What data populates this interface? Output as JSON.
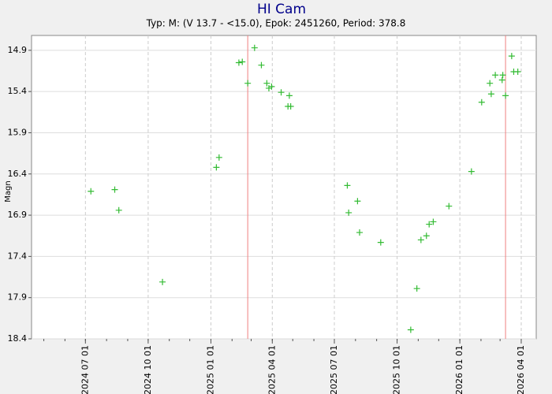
{
  "chart_data": {
    "type": "scatter",
    "title": "HI Cam",
    "subtitle": "Typ: M: (V 13.7 - <15.0), Epok: 2451260, Period: 378.8",
    "y_label": "Magn",
    "invert_y": true,
    "grid": true,
    "ylim": [
      14.72,
      18.4
    ],
    "yticks": [
      14.9,
      15.4,
      15.9,
      16.4,
      16.9,
      17.4,
      17.9,
      18.4
    ],
    "xlim": [
      "2024-04-13",
      "2026-04-23"
    ],
    "xticks": [
      {
        "value": "2024-07-01",
        "label": "2024 07 01"
      },
      {
        "value": "2024-10-01",
        "label": "2024 10 01"
      },
      {
        "value": "2025-01-01",
        "label": "2025 01 01"
      },
      {
        "value": "2025-04-01",
        "label": "2025 04 01"
      },
      {
        "value": "2025-07-01",
        "label": "2025 07 01"
      },
      {
        "value": "2025-10-01",
        "label": "2025 10 01"
      },
      {
        "value": "2026-01-01",
        "label": "2026 01 01"
      },
      {
        "value": "2026-04-01",
        "label": "2026 04 01"
      }
    ],
    "maxima": [
      "2025-02-24",
      "2026-03-09"
    ],
    "maxima_color": "#f08080",
    "series": [
      {
        "color": "#33bb33",
        "x": [
          "2024-07-09",
          "2024-08-13",
          "2024-08-19",
          "2024-10-22",
          "2025-01-09",
          "2025-01-13",
          "2025-02-11",
          "2025-02-16",
          "2025-02-24",
          "2025-03-06",
          "2025-03-16",
          "2025-03-24",
          "2025-03-27",
          "2025-03-31",
          "2025-04-14",
          "2025-04-24",
          "2025-04-28",
          "2025-04-26",
          "2025-07-20",
          "2025-07-22",
          "2025-08-04",
          "2025-08-07",
          "2025-09-07",
          "2025-10-21",
          "2025-10-30",
          "2025-11-05",
          "2025-11-13",
          "2025-11-17",
          "2025-11-23",
          "2025-12-16",
          "2026-01-18",
          "2026-02-02",
          "2026-02-14",
          "2026-02-16",
          "2026-02-22",
          "2026-03-04",
          "2026-03-05",
          "2026-03-09",
          "2026-03-18",
          "2026-03-21",
          "2026-03-27"
        ],
        "values": [
          16.61,
          16.59,
          16.84,
          17.71,
          16.32,
          16.2,
          15.05,
          15.04,
          15.3,
          14.87,
          15.08,
          15.3,
          15.36,
          15.34,
          15.41,
          15.58,
          15.58,
          15.45,
          16.54,
          16.87,
          16.73,
          17.11,
          17.23,
          18.29,
          17.79,
          17.2,
          17.15,
          17.01,
          16.98,
          16.79,
          16.37,
          15.53,
          15.3,
          15.43,
          15.2,
          15.26,
          15.2,
          15.45,
          14.97,
          15.16,
          15.16
        ]
      }
    ]
  }
}
